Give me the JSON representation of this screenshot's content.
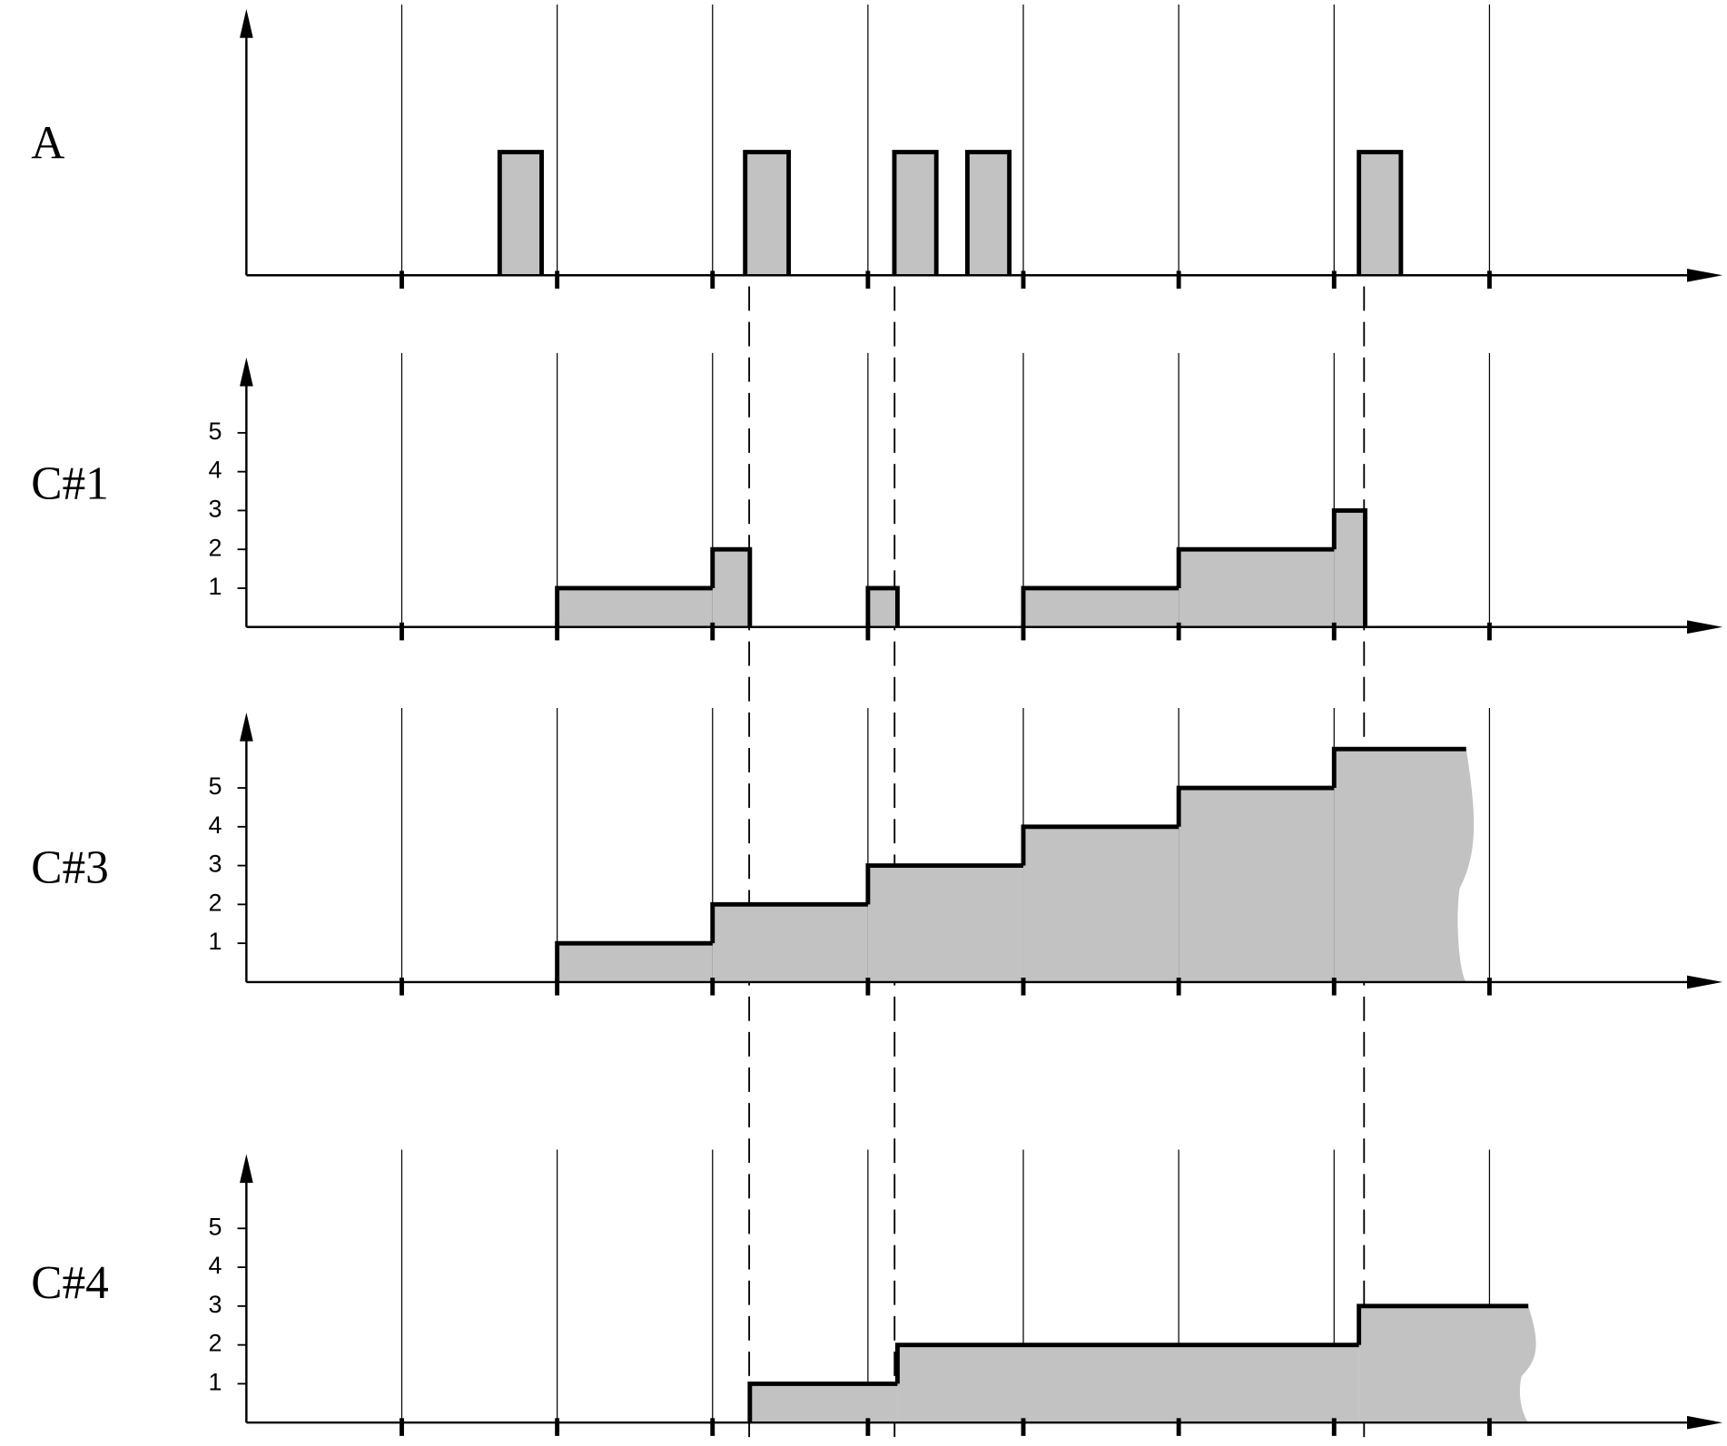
{
  "rows": [
    {
      "label": "A",
      "steps": [
        {
          "start": 1.63,
          "end": 1.9,
          "level": 1
        },
        {
          "start": 3.21,
          "end": 3.49,
          "level": 1
        },
        {
          "start": 4.17,
          "end": 4.44,
          "level": 1
        },
        {
          "start": 4.64,
          "end": 4.91,
          "level": 1
        },
        {
          "start": 7.16,
          "end": 7.43,
          "level": 1
        }
      ]
    },
    {
      "label": "C#1",
      "yticks": [
        1,
        2,
        3,
        4,
        5
      ],
      "steps": [
        {
          "start": 2,
          "end": 3,
          "level": 1
        },
        {
          "start": 3,
          "end": 3.24,
          "level": 2
        },
        {
          "start": 4,
          "end": 4.19,
          "level": 1
        },
        {
          "start": 5,
          "end": 6,
          "level": 1
        },
        {
          "start": 6,
          "end": 7,
          "level": 2
        },
        {
          "start": 7,
          "end": 7.2,
          "level": 3
        }
      ]
    },
    {
      "label": "C#3",
      "yticks": [
        1,
        2,
        3,
        4,
        5
      ],
      "open_end": true,
      "steps": [
        {
          "start": 2,
          "end": 3,
          "level": 1
        },
        {
          "start": 3,
          "end": 4,
          "level": 2
        },
        {
          "start": 4,
          "end": 5,
          "level": 3
        },
        {
          "start": 5,
          "end": 6,
          "level": 4
        },
        {
          "start": 6,
          "end": 7,
          "level": 5
        },
        {
          "start": 7,
          "end": 7.85,
          "level": 6
        }
      ]
    },
    {
      "label": "C#4",
      "yticks": [
        1,
        2,
        3,
        4,
        5
      ],
      "open_end": true,
      "steps": [
        {
          "start": 3.24,
          "end": 4.19,
          "level": 1
        },
        {
          "start": 4.19,
          "end": 7.16,
          "level": 2
        },
        {
          "start": 7.16,
          "end": 8.25,
          "level": 3
        }
      ]
    }
  ]
}
